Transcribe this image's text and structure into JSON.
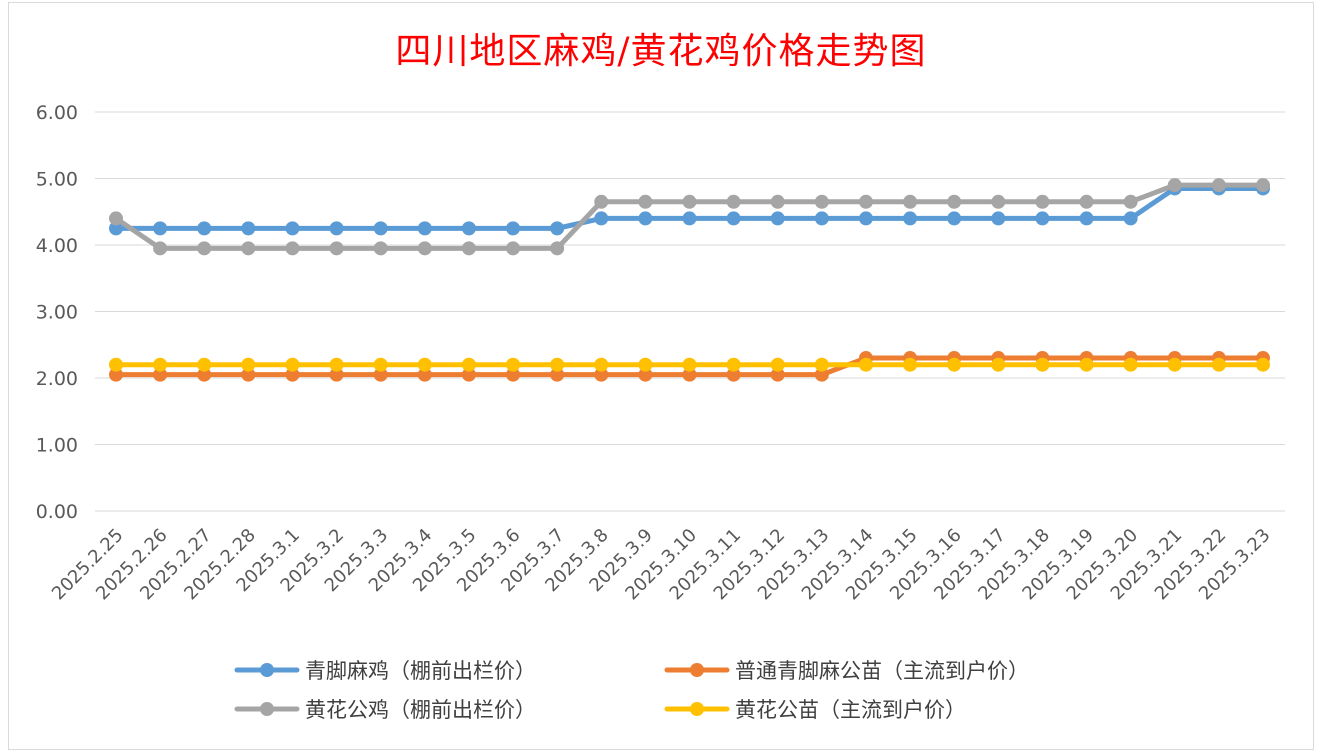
{
  "chart_data": {
    "type": "line",
    "title": "四川地区麻鸡/黄花鸡价格走势图",
    "xlabel": "",
    "ylabel": "",
    "ylim": [
      0,
      6
    ],
    "yticks": [
      "0.00",
      "1.00",
      "2.00",
      "3.00",
      "4.00",
      "5.00",
      "6.00"
    ],
    "grid": true,
    "legend_position": "bottom",
    "categories": [
      "2025.2.25",
      "2025.2.26",
      "2025.2.27",
      "2025.2.28",
      "2025.3.1",
      "2025.3.2",
      "2025.3.3",
      "2025.3.4",
      "2025.3.5",
      "2025.3.6",
      "2025.3.7",
      "2025.3.8",
      "2025.3.9",
      "2025.3.10",
      "2025.3.11",
      "2025.3.12",
      "2025.3.13",
      "2025.3.14",
      "2025.3.15",
      "2025.3.16",
      "2025.3.17",
      "2025.3.18",
      "2025.3.19",
      "2025.3.20",
      "2025.3.21",
      "2025.3.22",
      "2025.3.23"
    ],
    "series": [
      {
        "name": "青脚麻鸡（棚前出栏价）",
        "color": "#5b9bd5",
        "values": [
          4.25,
          4.25,
          4.25,
          4.25,
          4.25,
          4.25,
          4.25,
          4.25,
          4.25,
          4.25,
          4.25,
          4.4,
          4.4,
          4.4,
          4.4,
          4.4,
          4.4,
          4.4,
          4.4,
          4.4,
          4.4,
          4.4,
          4.4,
          4.4,
          4.85,
          4.85,
          4.85
        ]
      },
      {
        "name": "普通青脚麻公苗（主流到户价）",
        "color": "#ed7d31",
        "values": [
          2.05,
          2.05,
          2.05,
          2.05,
          2.05,
          2.05,
          2.05,
          2.05,
          2.05,
          2.05,
          2.05,
          2.05,
          2.05,
          2.05,
          2.05,
          2.05,
          2.05,
          2.3,
          2.3,
          2.3,
          2.3,
          2.3,
          2.3,
          2.3,
          2.3,
          2.3,
          2.3
        ]
      },
      {
        "name": "黄花公鸡（棚前出栏价）",
        "color": "#a5a5a5",
        "values": [
          4.4,
          3.95,
          3.95,
          3.95,
          3.95,
          3.95,
          3.95,
          3.95,
          3.95,
          3.95,
          3.95,
          4.65,
          4.65,
          4.65,
          4.65,
          4.65,
          4.65,
          4.65,
          4.65,
          4.65,
          4.65,
          4.65,
          4.65,
          4.65,
          4.9,
          4.9,
          4.9
        ]
      },
      {
        "name": "黄花公苗（主流到户价）",
        "color": "#ffc000",
        "values": [
          2.2,
          2.2,
          2.2,
          2.2,
          2.2,
          2.2,
          2.2,
          2.2,
          2.2,
          2.2,
          2.2,
          2.2,
          2.2,
          2.2,
          2.2,
          2.2,
          2.2,
          2.2,
          2.2,
          2.2,
          2.2,
          2.2,
          2.2,
          2.2,
          2.2,
          2.2,
          2.2
        ]
      }
    ]
  }
}
